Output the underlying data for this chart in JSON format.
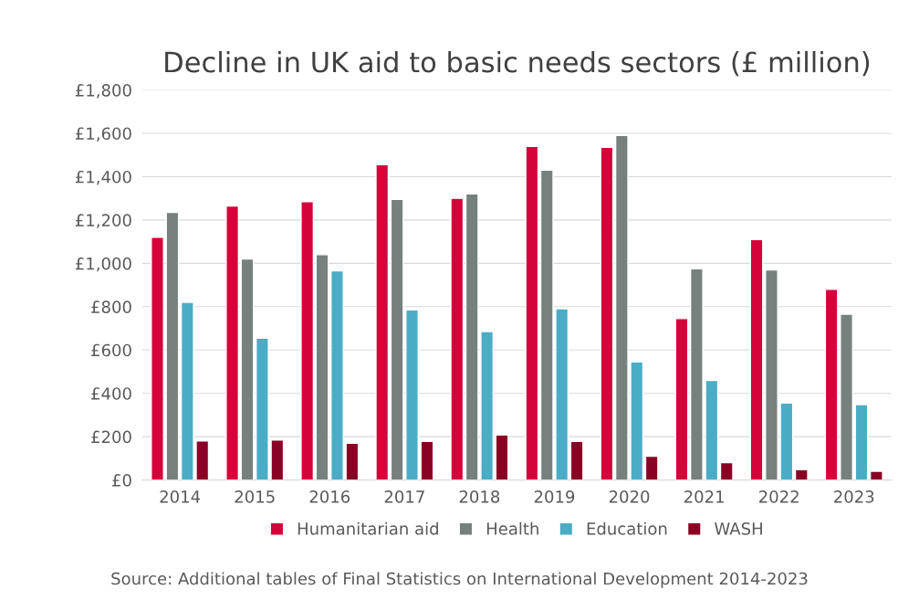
{
  "chart_data": {
    "type": "bar",
    "title": "Decline in UK aid to basic needs sectors (£ million)",
    "categories": [
      "2014",
      "2015",
      "2016",
      "2017",
      "2018",
      "2019",
      "2020",
      "2021",
      "2022",
      "2023"
    ],
    "series": [
      {
        "name": "Humanitarian aid",
        "color": "#d5033a",
        "values": [
          1120,
          1265,
          1285,
          1455,
          1300,
          1540,
          1535,
          745,
          1110,
          880
        ]
      },
      {
        "name": "Health",
        "color": "#76817e",
        "values": [
          1235,
          1020,
          1040,
          1295,
          1320,
          1430,
          1590,
          975,
          970,
          765
        ]
      },
      {
        "name": "Education",
        "color": "#4bacc6",
        "values": [
          820,
          655,
          965,
          785,
          685,
          790,
          545,
          460,
          355,
          348
        ]
      },
      {
        "name": "WASH",
        "color": "#8a0025",
        "values": [
          180,
          185,
          170,
          178,
          208,
          178,
          110,
          80,
          48,
          40
        ]
      }
    ],
    "ylim": [
      0,
      1800
    ],
    "yticks": [
      {
        "value": 0,
        "label": "£0"
      },
      {
        "value": 200,
        "label": "£200"
      },
      {
        "value": 400,
        "label": "£400"
      },
      {
        "value": 600,
        "label": "£600"
      },
      {
        "value": 800,
        "label": "£800"
      },
      {
        "value": 1000,
        "label": "£1,000"
      },
      {
        "value": 1200,
        "label": "£1,200"
      },
      {
        "value": 1400,
        "label": "£1,400"
      },
      {
        "value": 1600,
        "label": "£1,600"
      },
      {
        "value": 1800,
        "label": "£1,800"
      }
    ],
    "grid": "y",
    "legend": "bottom",
    "annotations": [
      "Source: Additional tables of Final Statistics on International Development 2014-2023"
    ]
  }
}
